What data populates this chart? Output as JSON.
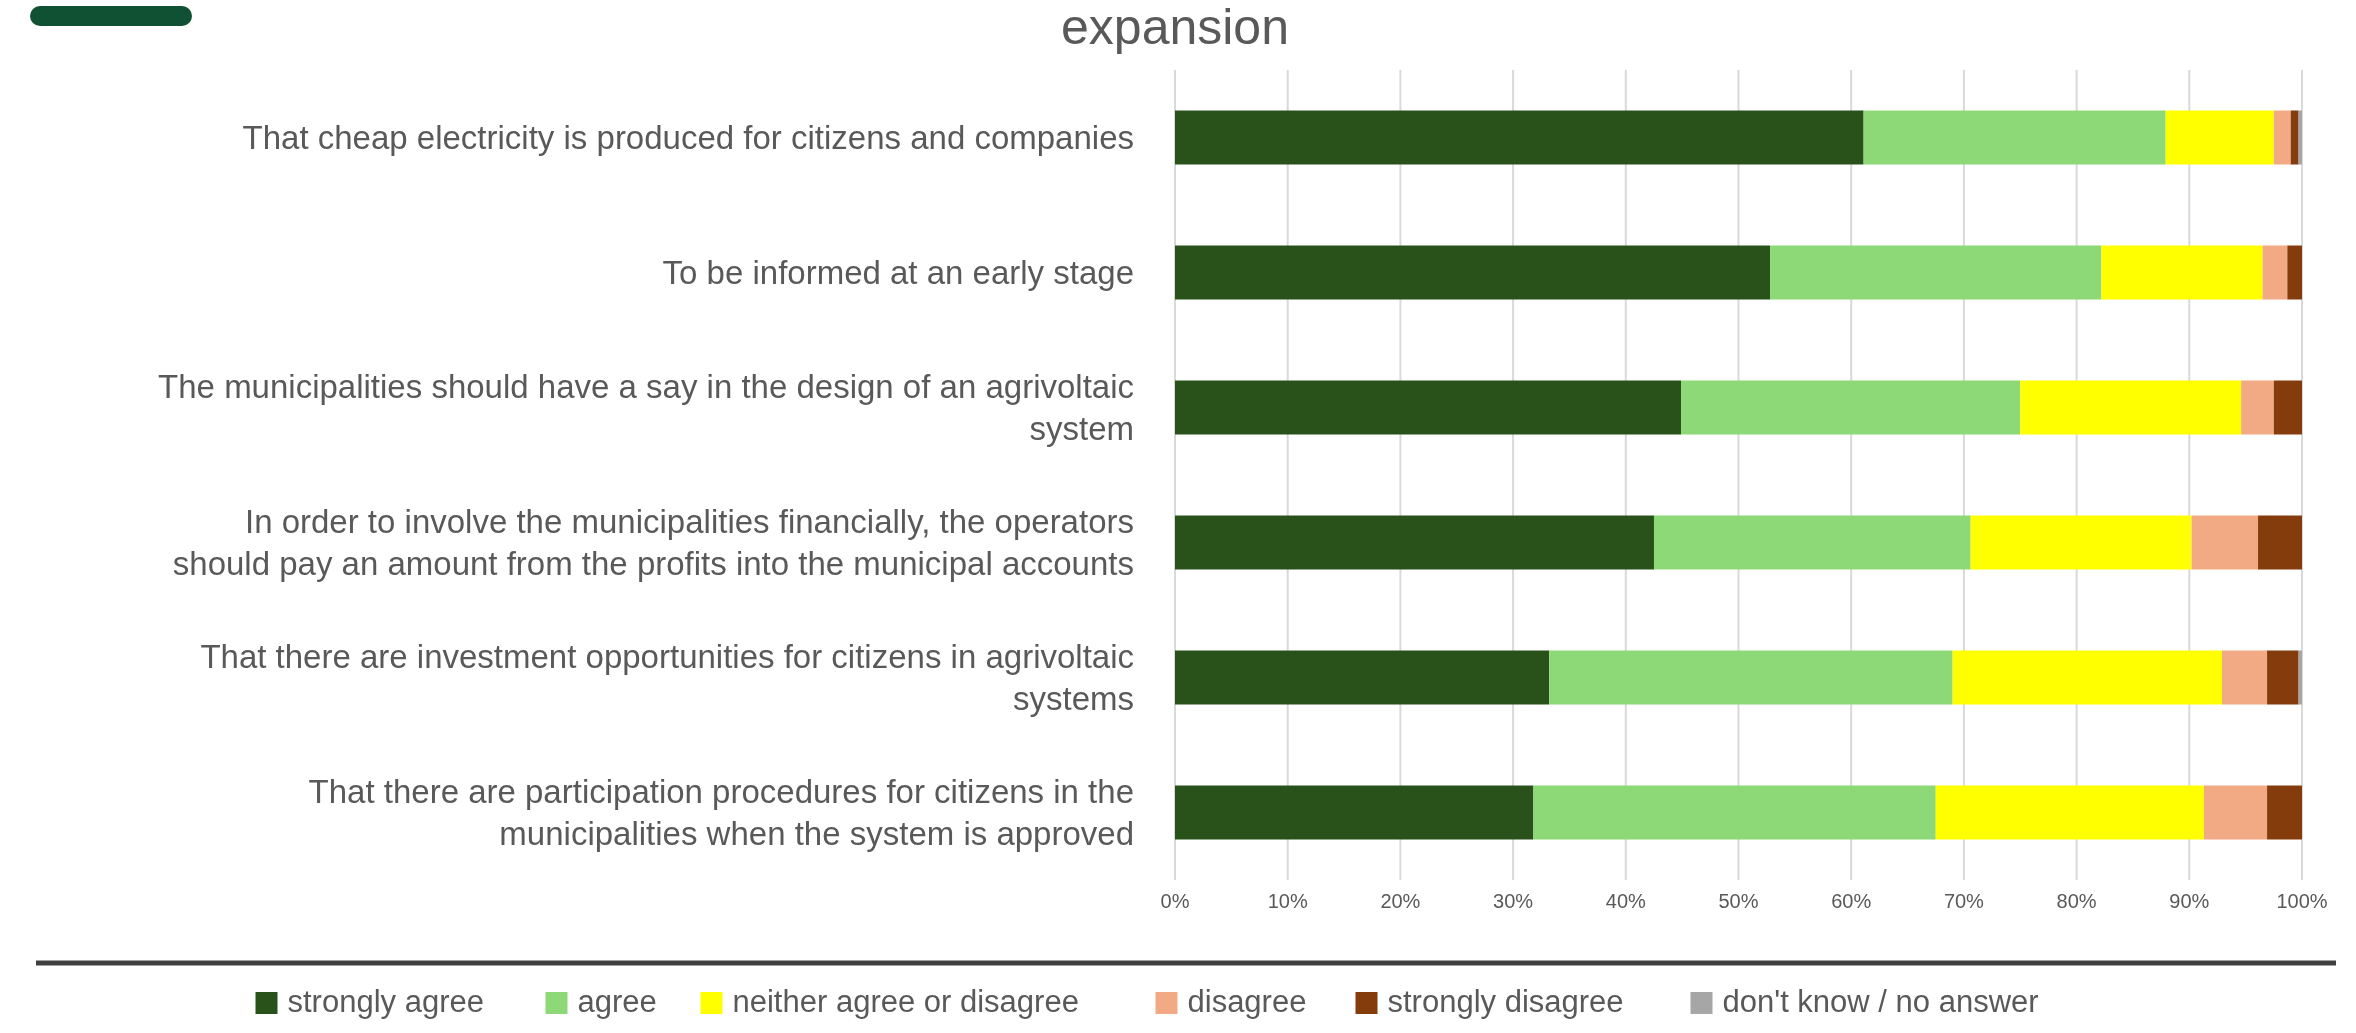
{
  "chart_data": {
    "type": "bar",
    "orientation": "horizontal",
    "stacked": true,
    "title": "expansion",
    "categories": [
      "That cheap electricity is produced for citizens and companies",
      "To be informed at an early stage",
      "The municipalities should have a say in the design of an agrivoltaic system",
      "In order to involve the municipalities financially, the operators should pay an amount from the profits into the municipal accounts",
      "That there are investment opportunities for citizens in agrivoltaic systems",
      "That there are participation procedures for citizens in the municipalities when the system is approved"
    ],
    "series": [
      {
        "name": "strongly agree",
        "color": "#28521a",
        "values": [
          61.1,
          52.8,
          44.9,
          42.5,
          33.2,
          31.8
        ]
      },
      {
        "name": "agree",
        "color": "#8ed977",
        "values": [
          26.8,
          29.4,
          30.1,
          28.1,
          35.8,
          35.7
        ]
      },
      {
        "name": "neither agree or disagree",
        "color": "#ffff00",
        "values": [
          9.6,
          14.3,
          19.6,
          19.6,
          23.9,
          23.8
        ]
      },
      {
        "name": "disagree",
        "color": "#f2aa84",
        "values": [
          1.5,
          2.2,
          2.9,
          5.9,
          4.0,
          5.6
        ]
      },
      {
        "name": "strongly disagree",
        "color": "#843c0c",
        "values": [
          0.7,
          1.3,
          2.5,
          3.9,
          2.8,
          3.1
        ]
      },
      {
        "name": "don't know / no answer",
        "color": "#a6a6a6",
        "values": [
          0.3,
          0,
          0,
          0,
          0.3,
          0
        ]
      }
    ],
    "xlim": [
      0,
      100
    ],
    "xticks": [
      {
        "value": 0,
        "label": "0%"
      },
      {
        "value": 10,
        "label": "10%"
      },
      {
        "value": 20,
        "label": "20%"
      },
      {
        "value": 30,
        "label": "30%"
      },
      {
        "value": 40,
        "label": "40%"
      },
      {
        "value": 50,
        "label": "50%"
      },
      {
        "value": 60,
        "label": "60%"
      },
      {
        "value": 70,
        "label": "70%"
      },
      {
        "value": 80,
        "label": "80%"
      },
      {
        "value": 90,
        "label": "90%"
      },
      {
        "value": 100,
        "label": "100%"
      }
    ],
    "grid": "x",
    "legend": "bottom"
  }
}
